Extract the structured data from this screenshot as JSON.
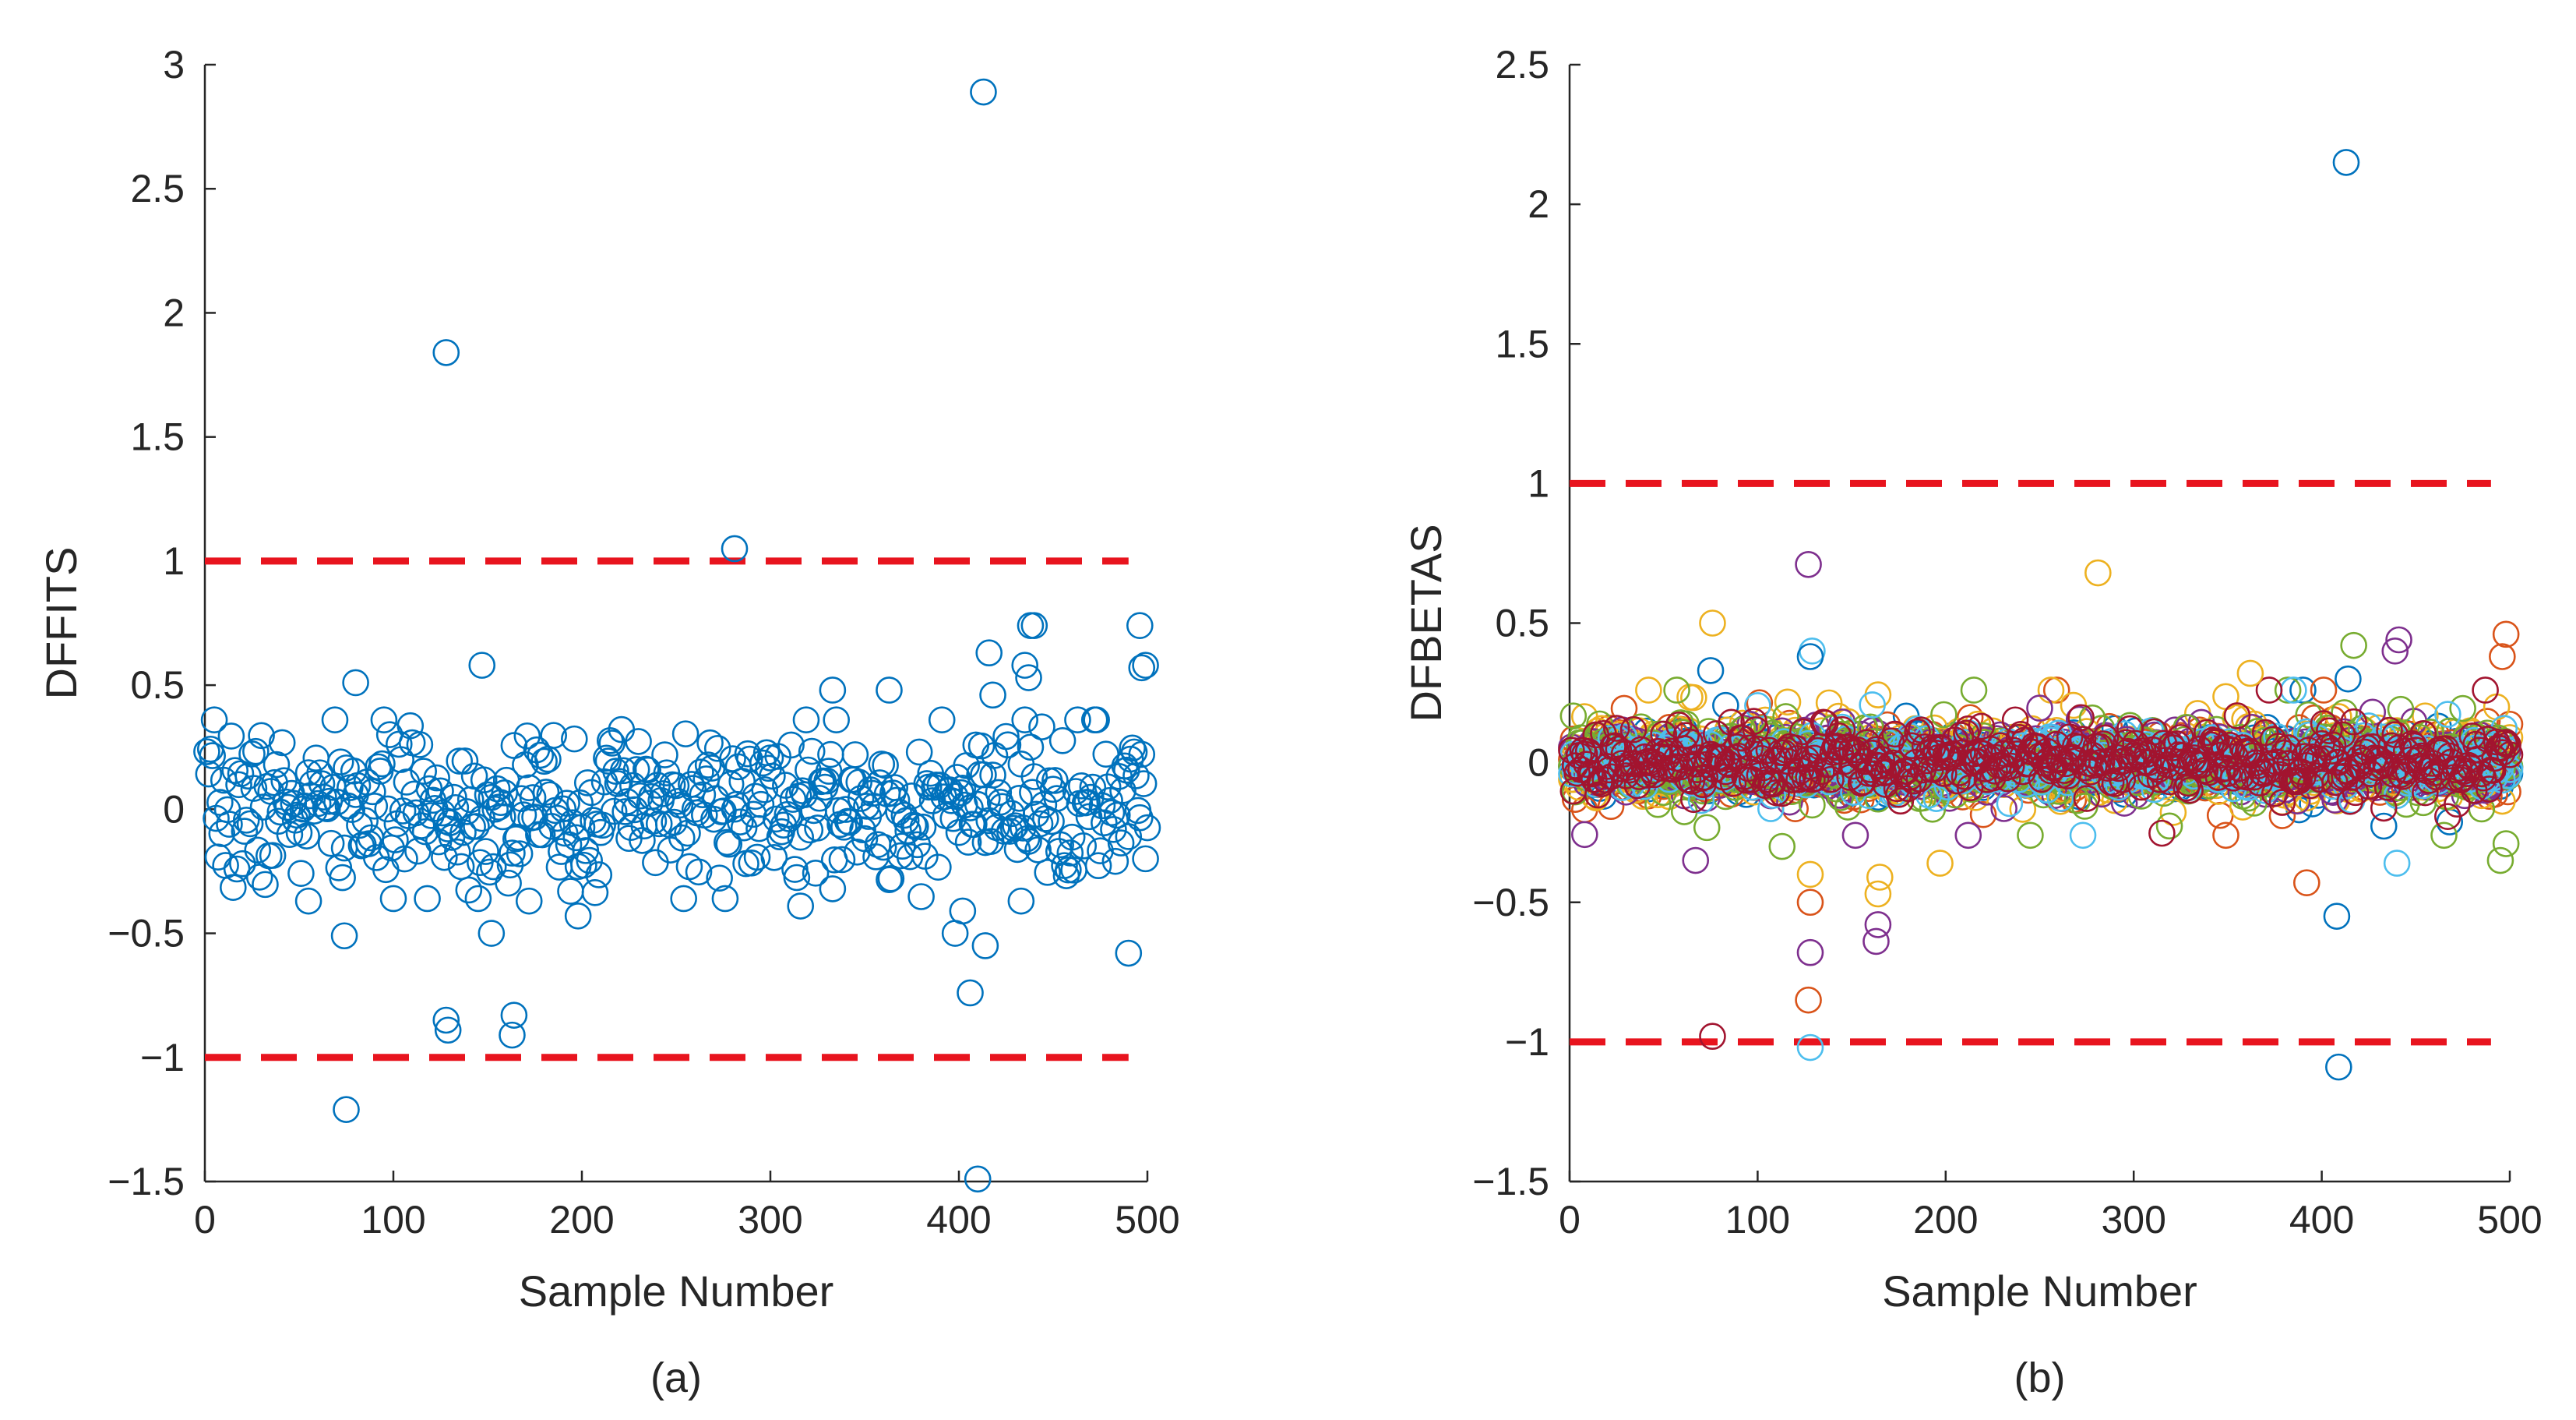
{
  "chart_data": [
    {
      "type": "scatter",
      "panel_caption": "(a)",
      "xlabel": "Sample Number",
      "ylabel": "DFFITS",
      "xlim": [
        0,
        500
      ],
      "ylim": [
        -1.5,
        3
      ],
      "xticks": [
        0,
        100,
        200,
        300,
        400,
        500
      ],
      "yticks": [
        -1.5,
        -1,
        -0.5,
        0,
        0.5,
        1,
        1.5,
        2,
        2.5,
        3
      ],
      "xtick_labels": [
        "0",
        "100",
        "200",
        "300",
        "400",
        "500"
      ],
      "ytick_labels": [
        "−1.5",
        "−1",
        "−0.5",
        "0",
        "0.5",
        "1",
        "1.5",
        "2",
        "2.5",
        "3"
      ],
      "marker_color": "#0072BD",
      "threshold_color": "#E8141E",
      "thresholds": [
        1,
        -1
      ],
      "threshold_xrange": [
        0,
        490
      ],
      "outliers": [
        {
          "x": 413,
          "y": 2.89
        },
        {
          "x": 128,
          "y": 1.84
        },
        {
          "x": 281,
          "y": 1.05
        },
        {
          "x": 410,
          "y": -1.49
        },
        {
          "x": 75,
          "y": -1.21
        },
        {
          "x": 128,
          "y": -0.85
        },
        {
          "x": 129,
          "y": -0.89
        },
        {
          "x": 164,
          "y": -0.83
        },
        {
          "x": 163,
          "y": -0.91
        },
        {
          "x": 406,
          "y": -0.74
        },
        {
          "x": 440,
          "y": 0.74
        },
        {
          "x": 438,
          "y": 0.74
        },
        {
          "x": 496,
          "y": 0.74
        },
        {
          "x": 416,
          "y": 0.63
        },
        {
          "x": 147,
          "y": 0.58
        },
        {
          "x": 435,
          "y": 0.58
        },
        {
          "x": 497,
          "y": 0.57
        },
        {
          "x": 499,
          "y": 0.58
        },
        {
          "x": 437,
          "y": 0.53
        },
        {
          "x": 80,
          "y": 0.51
        },
        {
          "x": 333,
          "y": 0.48
        },
        {
          "x": 363,
          "y": 0.48
        },
        {
          "x": 418,
          "y": 0.46
        },
        {
          "x": 74,
          "y": -0.51
        },
        {
          "x": 152,
          "y": -0.5
        },
        {
          "x": 398,
          "y": -0.5
        },
        {
          "x": 490,
          "y": -0.58
        },
        {
          "x": 414,
          "y": -0.55
        },
        {
          "x": 198,
          "y": -0.43
        },
        {
          "x": 55,
          "y": -0.37
        },
        {
          "x": 402,
          "y": -0.41
        },
        {
          "x": 433,
          "y": -0.37
        },
        {
          "x": 172,
          "y": -0.37
        },
        {
          "x": 316,
          "y": -0.39
        }
      ],
      "bulk": {
        "n": 500,
        "seed": 7,
        "spread": 0.16,
        "clip": 0.36
      }
    },
    {
      "type": "scatter",
      "panel_caption": "(b)",
      "xlabel": "Sample Number",
      "ylabel": "DFBETAS",
      "xlim": [
        0,
        500
      ],
      "ylim": [
        -1.5,
        2.5
      ],
      "xticks": [
        0,
        100,
        200,
        300,
        400,
        500
      ],
      "yticks": [
        -1.5,
        -1,
        -0.5,
        0,
        0.5,
        1,
        1.5,
        2,
        2.5
      ],
      "xtick_labels": [
        "0",
        "100",
        "200",
        "300",
        "400",
        "500"
      ],
      "ytick_labels": [
        "−1.5",
        "−1",
        "−0.5",
        "0",
        "0.5",
        "1",
        "1.5",
        "2",
        "2.5"
      ],
      "series_colors": [
        "#0072BD",
        "#D95319",
        "#EDB120",
        "#7E2F8E",
        "#77AC30",
        "#4DBEEE",
        "#A2142F"
      ],
      "threshold_color": "#E8141E",
      "thresholds": [
        1,
        -1
      ],
      "threshold_xrange": [
        0,
        490
      ],
      "outliers": [
        {
          "x": 413,
          "y": 2.15,
          "c": 0
        },
        {
          "x": 409,
          "y": -1.09,
          "c": 0
        },
        {
          "x": 128,
          "y": -1.02,
          "c": 5
        },
        {
          "x": 76,
          "y": -0.98,
          "c": 6
        },
        {
          "x": 127,
          "y": 0.71,
          "c": 3
        },
        {
          "x": 281,
          "y": 0.68,
          "c": 2
        },
        {
          "x": 127,
          "y": -0.85,
          "c": 1
        },
        {
          "x": 128,
          "y": -0.68,
          "c": 3
        },
        {
          "x": 163,
          "y": -0.64,
          "c": 3
        },
        {
          "x": 164,
          "y": -0.58,
          "c": 3
        },
        {
          "x": 164,
          "y": -0.47,
          "c": 2
        },
        {
          "x": 165,
          "y": -0.41,
          "c": 2
        },
        {
          "x": 128,
          "y": -0.5,
          "c": 1
        },
        {
          "x": 128,
          "y": -0.4,
          "c": 2
        },
        {
          "x": 408,
          "y": -0.55,
          "c": 0
        },
        {
          "x": 392,
          "y": -0.43,
          "c": 1
        },
        {
          "x": 76,
          "y": 0.5,
          "c": 2
        },
        {
          "x": 129,
          "y": 0.4,
          "c": 5
        },
        {
          "x": 128,
          "y": 0.38,
          "c": 0
        },
        {
          "x": 441,
          "y": 0.44,
          "c": 3
        },
        {
          "x": 439,
          "y": 0.4,
          "c": 3
        },
        {
          "x": 498,
          "y": 0.46,
          "c": 1
        },
        {
          "x": 417,
          "y": 0.42,
          "c": 4
        },
        {
          "x": 496,
          "y": 0.38,
          "c": 1
        },
        {
          "x": 495,
          "y": -0.35,
          "c": 4
        },
        {
          "x": 498,
          "y": -0.29,
          "c": 4
        },
        {
          "x": 440,
          "y": -0.36,
          "c": 5
        },
        {
          "x": 197,
          "y": -0.36,
          "c": 2
        },
        {
          "x": 67,
          "y": -0.35,
          "c": 3
        },
        {
          "x": 113,
          "y": -0.3,
          "c": 4
        },
        {
          "x": 362,
          "y": 0.32,
          "c": 2
        },
        {
          "x": 414,
          "y": 0.3,
          "c": 0
        },
        {
          "x": 75,
          "y": 0.33,
          "c": 0
        }
      ],
      "bulk": {
        "n": 500,
        "seed": 11,
        "spread": 0.07,
        "clip": 0.26
      }
    }
  ]
}
